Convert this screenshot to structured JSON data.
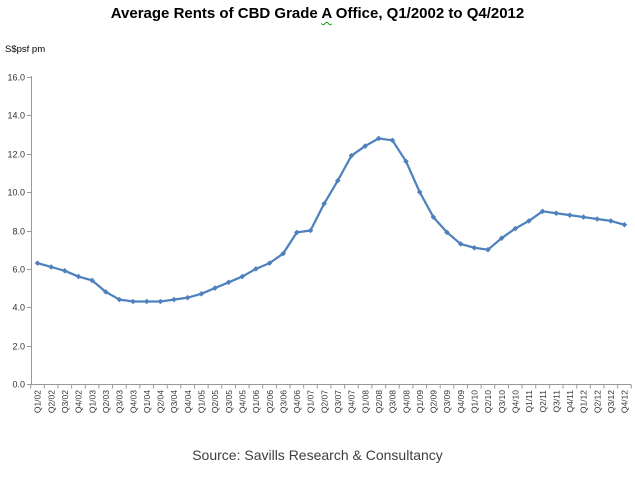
{
  "header": {
    "title_prefix": "Average Rents of CBD Grade ",
    "title_underlined_word": "A",
    "title_suffix": " Office, Q1/2002 to Q4/2012"
  },
  "axis_unit_label": "S$psf pm",
  "footer": {
    "source": "Source: Savills Research & Consultancy"
  },
  "colors": {
    "series_line": "#4F81BD",
    "axis_line": "#999999",
    "tick_label": "#333333",
    "title_text": "#000000",
    "source_text": "#3F3F3F",
    "spellcheck_underline": "#00A000",
    "background": "#FFFFFF"
  },
  "chart_data": {
    "type": "line",
    "title": "Average Rents of CBD Grade A Office, Q1/2002 to Q4/2012",
    "ylabel": "S$psf pm",
    "xlabel": "",
    "ylim": [
      0,
      16
    ],
    "ytick_step": 2,
    "ytick_decimals": 1,
    "grid": false,
    "legend_position": "none",
    "marker": "diamond",
    "categories": [
      "Q1/02",
      "Q2/02",
      "Q3/02",
      "Q4/02",
      "Q1/03",
      "Q2/03",
      "Q3/03",
      "Q4/03",
      "Q1/04",
      "Q2/04",
      "Q3/04",
      "Q4/04",
      "Q1/05",
      "Q2/05",
      "Q3/05",
      "Q4/05",
      "Q1/06",
      "Q2/06",
      "Q3/06",
      "Q4/06",
      "Q1/07",
      "Q2/07",
      "Q3/07",
      "Q4/07",
      "Q1/08",
      "Q2/08",
      "Q3/08",
      "Q4/08",
      "Q1/09",
      "Q2/09",
      "Q3/09",
      "Q4/09",
      "Q1/10",
      "Q2/10",
      "Q3/10",
      "Q4/10",
      "Q1/11",
      "Q2/11",
      "Q3/11",
      "Q4/11",
      "Q1/12",
      "Q2/12",
      "Q3/12",
      "Q4/12"
    ],
    "values": [
      6.3,
      6.1,
      5.9,
      5.6,
      5.4,
      4.8,
      4.4,
      4.3,
      4.3,
      4.3,
      4.4,
      4.5,
      4.7,
      5.0,
      5.3,
      5.6,
      6.0,
      6.3,
      6.8,
      7.9,
      8.0,
      9.4,
      10.6,
      11.9,
      12.4,
      12.8,
      12.7,
      11.6,
      10.0,
      8.7,
      7.9,
      7.3,
      7.1,
      7.0,
      7.6,
      8.1,
      8.5,
      9.0,
      8.9,
      8.8,
      8.7,
      8.6,
      8.5,
      8.3
    ]
  }
}
